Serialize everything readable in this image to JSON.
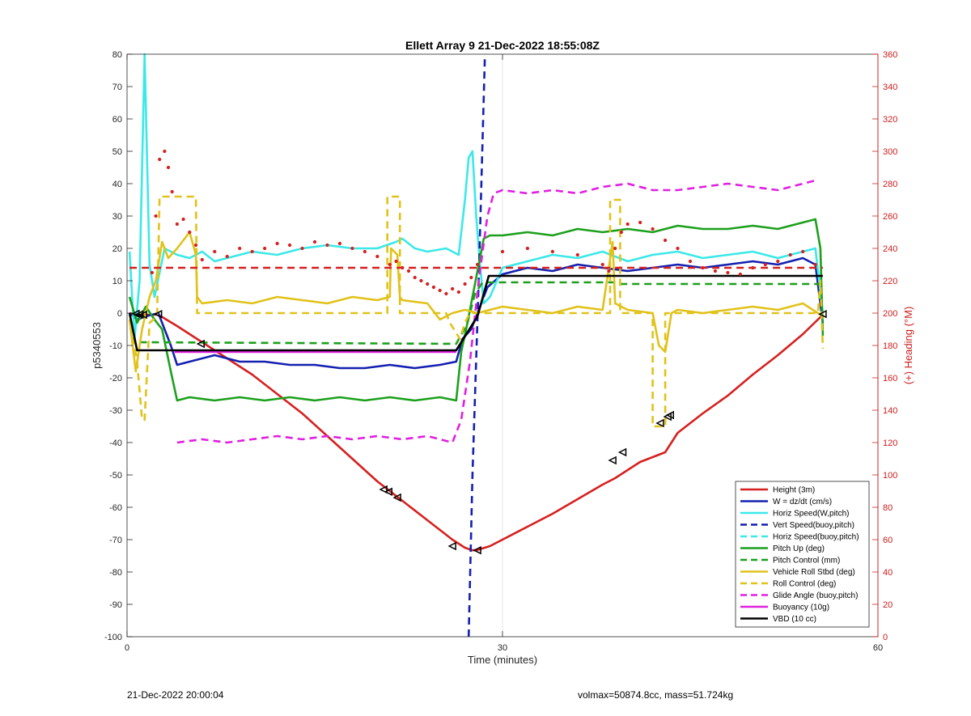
{
  "footer": {
    "left": "21-Dec-2022 20:00:04",
    "right": "volmax=50874.8cc, mass=51.724kg"
  },
  "chart_data": {
    "type": "line",
    "title": "Ellett Array 9 21-Dec-2022 18:55:08Z",
    "xlabel": "Time (minutes)",
    "ylabel": "p5340553",
    "y2label": "(+) Heading (°M)",
    "xlim": [
      0,
      60
    ],
    "ylim": [
      -100,
      80
    ],
    "y2lim": [
      0,
      360
    ],
    "xticks": [
      0,
      30,
      60
    ],
    "yticks": [
      -100,
      -90,
      -80,
      -70,
      -60,
      -50,
      -40,
      -30,
      -20,
      -10,
      0,
      10,
      20,
      30,
      40,
      50,
      60,
      70,
      80
    ],
    "y2ticks": [
      0,
      20,
      40,
      60,
      80,
      100,
      120,
      140,
      160,
      180,
      200,
      220,
      240,
      260,
      280,
      300,
      320,
      340,
      360
    ],
    "grid": "vertical",
    "legend_position": "bottom-right",
    "colors": {
      "red": "#d62020",
      "blue": "#1420b0",
      "cyan": "#3ce8e8",
      "green": "#1ca01c",
      "yellow": "#e0c21a",
      "magenta": "#e020e0",
      "black": "#000000",
      "axis_right": "#cc2020"
    },
    "series": [
      {
        "name": "Height (3m)",
        "color": "#d62020",
        "dash": false,
        "axis": "left",
        "x": [
          0.2,
          1,
          2.5,
          4,
          6,
          8,
          10,
          12,
          14,
          16,
          18,
          20,
          21,
          22,
          24,
          26,
          27,
          27.6,
          28,
          29,
          30,
          32,
          34,
          36,
          38,
          39,
          41,
          43,
          44,
          46,
          48,
          50,
          52,
          54,
          55.6
        ],
        "y": [
          0,
          -0.5,
          -0.5,
          -4,
          -9,
          -14,
          -19,
          -25,
          -31,
          -38,
          -45,
          -52,
          -55,
          -58,
          -64,
          -70,
          -72.5,
          -73.3,
          -73.2,
          -72,
          -70,
          -66,
          -62,
          -57.5,
          -53,
          -51,
          -46,
          -43,
          -37,
          -31,
          -25.5,
          -19,
          -13,
          -6.5,
          -0.5
        ]
      },
      {
        "name": "W = dz/dt (cm/s)",
        "color": "#1420b0",
        "dash": false,
        "axis": "left",
        "x": [
          0.2,
          0.8,
          1.5,
          2.5,
          3.5,
          4,
          5,
          7,
          9,
          11,
          13,
          15,
          17,
          19,
          21,
          23,
          25,
          26.3,
          26.8,
          27.5,
          28,
          28.8,
          30,
          32,
          34,
          36,
          38,
          40,
          42,
          44,
          46,
          48,
          50,
          52,
          54,
          55,
          55.6
        ],
        "y": [
          0,
          -2,
          -1,
          0,
          -10,
          -16,
          -15,
          -13,
          -15,
          -15,
          -16,
          -16,
          -17,
          -17,
          -16,
          -17,
          -16,
          -15,
          -8,
          -5,
          0,
          8,
          12,
          14,
          13,
          15,
          14,
          13,
          14,
          15,
          14,
          15,
          16,
          15,
          17,
          15,
          -3
        ]
      },
      {
        "name": "Horiz Speed(W,pitch)",
        "color": "#3ce8e8",
        "dash": false,
        "axis": "left",
        "x": [
          0.2,
          0.6,
          1.0,
          1.4,
          1.8,
          2.2,
          3,
          4,
          5,
          6,
          7,
          8,
          10,
          12,
          14,
          16,
          18,
          20,
          21.5,
          22,
          23,
          24,
          25.5,
          26.5,
          27,
          27.3,
          27.6,
          27.9,
          28.2,
          28.5,
          29,
          30,
          32,
          34,
          36,
          38,
          40,
          42,
          44,
          46,
          48,
          50,
          52,
          54,
          55,
          55.6
        ],
        "y": [
          19,
          -8,
          10,
          80,
          15,
          5,
          20,
          18,
          17,
          19,
          16,
          17,
          19,
          18,
          20,
          21,
          20,
          20,
          22,
          23,
          20,
          19,
          20,
          18,
          35,
          48,
          50,
          30,
          15,
          3,
          5,
          14,
          16,
          18,
          17,
          19,
          16,
          18,
          19,
          17,
          18,
          19,
          17,
          19,
          20,
          0
        ]
      },
      {
        "name": "Vert Speed(buoy,pitch)",
        "color": "#1420b0",
        "dash": true,
        "axis": "left",
        "x": [
          27.3,
          27.6,
          28.1,
          28.6
        ],
        "y": [
          -100,
          -50,
          10,
          80
        ]
      },
      {
        "name": "Horiz Speed(buoy,pitch)",
        "color": "#3ce8e8",
        "dash": true,
        "axis": "left",
        "x": [],
        "y": []
      },
      {
        "name": "Pitch Up (deg)",
        "color": "#1ca01c",
        "dash": false,
        "axis": "left",
        "x": [
          0.2,
          0.8,
          1.5,
          2.2,
          2.8,
          3.5,
          4,
          5,
          7,
          9,
          11,
          13,
          15,
          17,
          19,
          21,
          23,
          25,
          26.3,
          26.7,
          27.2,
          28.5,
          29,
          30,
          32,
          34,
          36,
          38,
          40,
          42,
          44,
          46,
          48,
          50,
          52,
          54,
          55,
          55.4,
          55.6
        ],
        "y": [
          5,
          -3,
          2,
          -2,
          -5,
          -18,
          -27,
          -26,
          -27,
          -26,
          -27,
          -26,
          -27,
          -26,
          -27,
          -26,
          -27,
          -26,
          -27,
          -12,
          -3,
          23,
          24,
          24,
          25,
          24,
          26,
          25,
          26,
          25,
          27,
          26,
          26,
          27,
          26,
          28,
          29,
          20,
          -7
        ]
      },
      {
        "name": "Pitch Control (mm)",
        "color": "#1ca01c",
        "dash": true,
        "axis": "left",
        "x": [
          1,
          26.3,
          26.8,
          27.2,
          27.8,
          28.4,
          38.9,
          39.3,
          55.5
        ],
        "y": [
          -9,
          -9.5,
          -6,
          -3,
          6,
          9.5,
          9.5,
          9,
          9
        ]
      },
      {
        "name": "Vehicle Roll Stbd (deg)",
        "color": "#e0c21a",
        "dash": false,
        "axis": "left",
        "x": [
          0.2,
          0.7,
          1.2,
          1.8,
          2.3,
          2.8,
          3.3,
          4,
          5,
          5.5,
          5.6,
          6,
          8,
          10,
          12,
          14,
          16,
          18,
          20,
          21,
          21.1,
          21.6,
          21.8,
          22,
          24,
          25,
          26,
          27,
          28,
          30,
          32,
          34,
          36,
          38,
          38.8,
          39,
          40,
          42,
          42.5,
          43,
          43.5,
          44,
          46,
          48,
          50,
          52,
          54,
          55.6
        ],
        "y": [
          -2,
          -18,
          -5,
          5,
          10,
          22,
          17,
          20,
          25,
          18,
          5,
          3,
          4,
          3,
          5,
          4,
          3,
          5,
          4,
          5,
          20,
          18,
          5,
          4,
          3,
          -2,
          0,
          1,
          0,
          2,
          1,
          0,
          2,
          1,
          22,
          3,
          1,
          0,
          -10,
          -12,
          0,
          1,
          0,
          1,
          2,
          1,
          3,
          -1
        ]
      },
      {
        "name": "Roll Control (deg)",
        "color": "#e0c21a",
        "dash": true,
        "axis": "left",
        "x": [
          0.2,
          0.8,
          1.2,
          1.4,
          1.8,
          2.4,
          2.6,
          5.5,
          5.6,
          5.6,
          20.8,
          20.8,
          21.8,
          21.8,
          25.5,
          25.8,
          26.6,
          27.0,
          27.4,
          38.6,
          38.6,
          39.4,
          39.4,
          42.0,
          42.0,
          43.0,
          43.0,
          55.2,
          55.4,
          55.6
        ],
        "y": [
          0,
          -15,
          -33,
          -33,
          -3,
          -1,
          36,
          36,
          0,
          0,
          0,
          36,
          36,
          0,
          0,
          -3,
          -8,
          -3,
          0,
          0,
          35,
          35,
          0,
          0,
          -35,
          -35,
          0,
          0,
          10,
          -11
        ]
      },
      {
        "name": "Glide Angle (buoy,pitch)",
        "color": "#e020e0",
        "dash": true,
        "axis": "left",
        "x": [
          4,
          6,
          8,
          10,
          12,
          14,
          16,
          18,
          20,
          22,
          24,
          26,
          26.7,
          27.4,
          28.1,
          28.8,
          29.3,
          30,
          32,
          34,
          36,
          38,
          40,
          42,
          44,
          46,
          48,
          50,
          52,
          54,
          55
        ],
        "y": [
          -40,
          -39,
          -40,
          -39,
          -38,
          -39,
          -38,
          -39,
          -38,
          -39,
          -38,
          -40,
          -33,
          -15,
          10,
          30,
          37,
          38,
          37,
          38,
          37,
          39,
          40,
          38,
          38,
          39,
          40,
          39,
          38,
          40,
          41
        ]
      },
      {
        "name": "Buoyancy (10g)",
        "color": "#e020e0",
        "dash": false,
        "axis": "left",
        "x": [
          3.8,
          26.3
        ],
        "y": [
          -12,
          -12
        ]
      },
      {
        "name": "VBD (10 cc)",
        "color": "#000000",
        "dash": false,
        "axis": "left",
        "x": [
          0.2,
          0.8,
          26.3,
          28,
          28.9,
          55.6
        ],
        "y": [
          0,
          -11.5,
          -11.5,
          -1,
          11.5,
          11.5
        ]
      },
      {
        "name": "Heading",
        "color": "#d62020",
        "dash": false,
        "axis": "right",
        "marker": "dots",
        "legend": false,
        "x": [
          2,
          2.3,
          2.6,
          3,
          3.3,
          3.6,
          4,
          4.5,
          5,
          5.5,
          6,
          7,
          8,
          9,
          10,
          11,
          12,
          13,
          14,
          15,
          16,
          17,
          18,
          19,
          20,
          21,
          21.5,
          22,
          22.5,
          23,
          23.5,
          24,
          24.5,
          25,
          25.5,
          26,
          26.5,
          27,
          27.5,
          28,
          30,
          32,
          34,
          36,
          38,
          38.5,
          39,
          39.5,
          40,
          41,
          42,
          43,
          44,
          45,
          46,
          47,
          48,
          49,
          50,
          51,
          52,
          53,
          54,
          55
        ],
        "y": [
          225,
          260,
          295,
          300,
          290,
          275,
          255,
          258,
          250,
          242,
          233,
          238,
          235,
          240,
          238,
          240,
          243,
          242,
          240,
          244,
          242,
          243,
          240,
          238,
          235,
          230,
          232,
          228,
          226,
          222,
          220,
          218,
          216,
          214,
          212,
          215,
          213,
          218,
          222,
          230,
          238,
          240,
          238,
          236,
          230,
          226,
          240,
          250,
          255,
          256,
          252,
          245,
          240,
          232,
          228,
          226,
          225,
          224,
          228,
          230,
          232,
          236,
          238,
          230
        ]
      },
      {
        "name": "Heading Target",
        "color": "#d62020",
        "dash": true,
        "axis": "right",
        "legend": false,
        "x": [
          0.2,
          55.6
        ],
        "y": [
          228,
          228
        ]
      }
    ],
    "markers": {
      "shape": "triangle",
      "x": [
        0.7,
        1.0,
        1.3,
        2.5,
        5.9,
        20.5,
        20.9,
        21.6,
        26.0,
        28.0,
        38.8,
        39.6,
        42.6,
        43.2,
        43.4,
        55.6
      ],
      "y": [
        -0.2,
        -0.4,
        -0.5,
        -0.3,
        -9.5,
        -54.5,
        -55.2,
        -57,
        -72,
        -73.3,
        -45.5,
        -43,
        -34,
        -32,
        -31.5,
        -0.3
      ]
    }
  }
}
